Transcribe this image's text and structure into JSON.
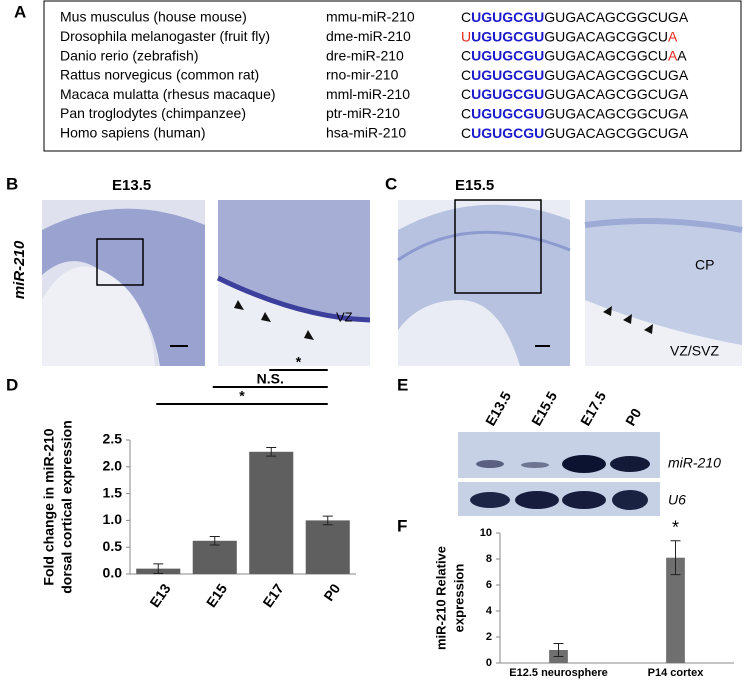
{
  "panels": {
    "a": "A",
    "b": "B",
    "c": "C",
    "d": "D",
    "e": "E",
    "f": "F"
  },
  "table": {
    "seed_color": "#1a1acc",
    "rows": [
      {
        "species": "Mus musculus (house mouse)",
        "mirna": "mmu-miR-210",
        "sequence": [
          {
            "text": "C"
          },
          {
            "text": "UGUGCGU",
            "seed": true
          },
          {
            "text": "GUGACAGCGGCUGA"
          }
        ]
      },
      {
        "species": "Drosophila melanogaster (fruit fly)",
        "mirna": "dme-miR-210",
        "sequence": [
          {
            "text": "U",
            "color": "#e8281e"
          },
          {
            "text": "UGUGCGU",
            "seed": true
          },
          {
            "text": "GUGACAGCGGCU"
          },
          {
            "text": "A",
            "color": "#e8281e"
          }
        ]
      },
      {
        "species": "Danio rerio (zebrafish)",
        "mirna": "dre-miR-210",
        "sequence": [
          {
            "text": "C"
          },
          {
            "text": "UGUGCGU",
            "seed": true
          },
          {
            "text": "GUGACAGCGGCU"
          },
          {
            "text": "A",
            "color": "#e8281e"
          },
          {
            "text": "A"
          }
        ]
      },
      {
        "species": "Rattus norvegicus (common rat)",
        "mirna": "rno-mir-210",
        "sequence": [
          {
            "text": "C"
          },
          {
            "text": "UGUGCGU",
            "seed": true
          },
          {
            "text": "GUGACAGCGGCUGA"
          }
        ]
      },
      {
        "species": "Macaca mulatta (rhesus macaque)",
        "mirna": "mml-miR-210",
        "sequence": [
          {
            "text": "C"
          },
          {
            "text": "UGUGCGU",
            "seed": true
          },
          {
            "text": "GUGACAGCGGCUGA"
          }
        ]
      },
      {
        "species": "Pan troglodytes (chimpanzee)",
        "mirna": "ptr-miR-210",
        "sequence": [
          {
            "text": "C"
          },
          {
            "text": "UGUGCGU",
            "seed": true
          },
          {
            "text": "GUGACAGCGGCUGA"
          }
        ]
      },
      {
        "species": "Homo sapiens (human)",
        "mirna": "hsa-miR-210",
        "sequence": [
          {
            "text": "C"
          },
          {
            "text": "UGUGCGU",
            "seed": true
          },
          {
            "text": "GUGACAGCGGCUGA"
          }
        ]
      }
    ]
  },
  "images": {
    "row_label": "miR-210",
    "b_stage": "E13.5",
    "b_zone": "VZ",
    "c_stage": "E15.5",
    "c_upper": "CP",
    "c_lower": "VZ/SVZ"
  },
  "blot": {
    "lanes": [
      "E13.5",
      "E15.5",
      "E17.5",
      "P0"
    ],
    "rows": [
      "miR-210",
      "U6"
    ]
  },
  "chart_data": [
    {
      "type": "bar",
      "categories": [
        "E13",
        "E15",
        "E17",
        "P0"
      ],
      "values": [
        0.1,
        0.62,
        2.28,
        1.0
      ],
      "errors": [
        0.09,
        0.08,
        0.08,
        0.08
      ],
      "color": "#5f5f5f",
      "ylim": [
        0,
        2.5
      ],
      "yticks": [
        {
          "value": 0,
          "label": "0.0"
        },
        0.5,
        {
          "value": 1,
          "label": "1.0"
        },
        1.5,
        {
          "value": 2,
          "label": "2.0"
        },
        2.5
      ],
      "ylabel": [
        "Fold change in miR-210",
        "dorsal cortical expression"
      ],
      "annotations": [
        "*",
        "N.S.",
        "*"
      ]
    },
    {
      "type": "bar",
      "categories": [
        "E12.5 neurosphere",
        "P14 cortex"
      ],
      "values": [
        1.0,
        8.1
      ],
      "errors": [
        0.5,
        1.3
      ],
      "color": "#6f6f6f",
      "ylim": [
        0,
        10
      ],
      "yticks": [
        0,
        2,
        4,
        6,
        8,
        10
      ],
      "ylabel": [
        "miR-210 Relative",
        "expression"
      ],
      "annotations": [
        "*"
      ]
    }
  ]
}
